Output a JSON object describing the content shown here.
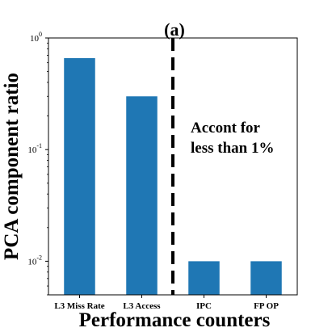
{
  "chart_data": {
    "type": "bar",
    "title": "(a)",
    "xlabel": "Performance counters",
    "ylabel": "PCA component ratio",
    "yscale": "log",
    "ylim": [
      0.005,
      1
    ],
    "yticks": [
      {
        "value": 1,
        "base": "10",
        "exp": "0"
      },
      {
        "value": 0.1,
        "base": "10",
        "exp": "-1"
      },
      {
        "value": 0.01,
        "base": "10",
        "exp": "-2"
      }
    ],
    "categories": [
      "L3 Miss Rate",
      "L3 Access",
      "IPC",
      "FP OP"
    ],
    "values": [
      0.66,
      0.3,
      0.01,
      0.01
    ],
    "bar_color": "#1f77b4",
    "divider": {
      "after_index": 1,
      "style": "dashed",
      "color": "#000000"
    },
    "annotation": [
      "Accont for",
      "less than 1%"
    ],
    "grid": false
  }
}
